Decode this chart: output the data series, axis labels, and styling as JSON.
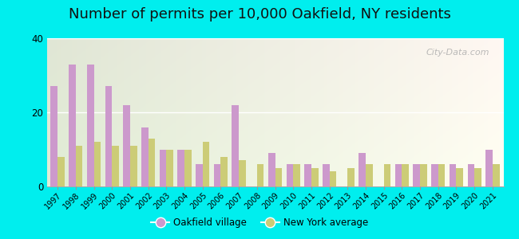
{
  "title": "Number of permits per 10,000 Oakfield, NY residents",
  "years": [
    1997,
    1998,
    1999,
    2000,
    2001,
    2002,
    2003,
    2004,
    2005,
    2006,
    2007,
    2008,
    2009,
    2010,
    2011,
    2012,
    2013,
    2014,
    2015,
    2016,
    2017,
    2018,
    2019,
    2020,
    2021
  ],
  "oakfield": [
    27,
    33,
    33,
    27,
    22,
    16,
    10,
    10,
    6,
    6,
    22,
    0,
    9,
    6,
    6,
    6,
    0,
    9,
    0,
    6,
    6,
    6,
    6,
    6,
    10
  ],
  "ny_avg": [
    8,
    11,
    12,
    11,
    11,
    13,
    10,
    10,
    12,
    8,
    7,
    6,
    5,
    6,
    5,
    4,
    5,
    6,
    6,
    6,
    6,
    6,
    5,
    5,
    6
  ],
  "oakfield_color": "#cc99cc",
  "ny_avg_color": "#cccc77",
  "bg_outer": "#00eeee",
  "ylim": [
    0,
    40
  ],
  "yticks": [
    0,
    20,
    40
  ],
  "legend_oakfield": "Oakfield village",
  "legend_ny": "New York average",
  "title_fontsize": 13,
  "bar_width": 0.38
}
